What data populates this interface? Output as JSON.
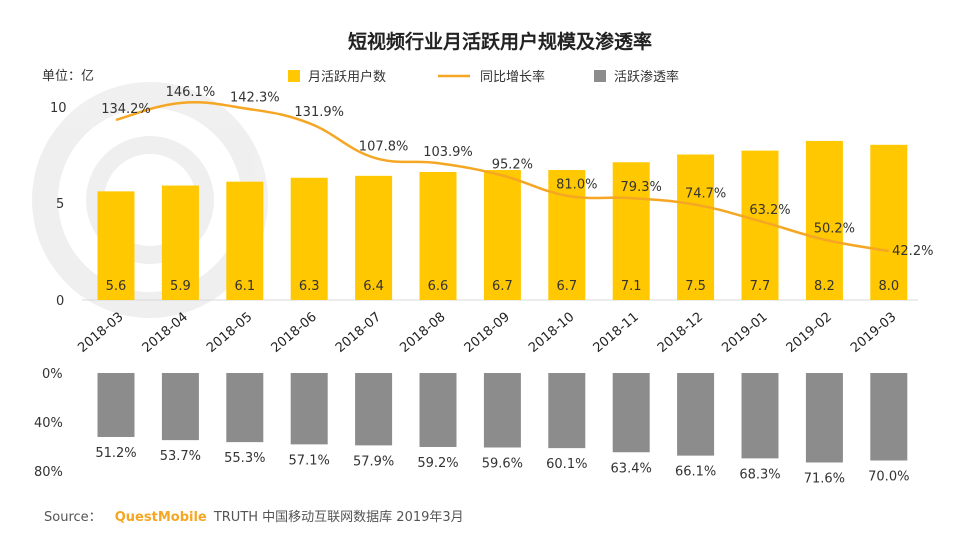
{
  "chart_data": {
    "type": "bar+line",
    "title": "短视频行业月活跃用户规模及渗透率",
    "unit_label": "单位：亿",
    "categories": [
      "2018-03",
      "2018-04",
      "2018-05",
      "2018-06",
      "2018-07",
      "2018-08",
      "2018-09",
      "2018-10",
      "2018-11",
      "2018-12",
      "2019-01",
      "2019-02",
      "2019-03"
    ],
    "series": [
      {
        "name": "月活跃用户数",
        "type": "bar",
        "color": "#FFC800",
        "values": [
          5.6,
          5.9,
          6.1,
          6.3,
          6.4,
          6.6,
          6.7,
          6.7,
          7.1,
          7.5,
          7.7,
          8.2,
          8.0
        ],
        "labels": [
          "5.6",
          "5.9",
          "6.1",
          "6.3",
          "6.4",
          "6.6",
          "6.7",
          "6.7",
          "7.1",
          "7.5",
          "7.7",
          "8.2",
          "8.0"
        ]
      },
      {
        "name": "同比增长率",
        "type": "line",
        "color": "#F5A623",
        "values": [
          134.2,
          146.1,
          142.3,
          131.9,
          107.8,
          103.9,
          95.2,
          81.0,
          79.3,
          74.7,
          63.2,
          50.2,
          42.2
        ],
        "labels": [
          "134.2%",
          "146.1%",
          "142.3%",
          "131.9%",
          "107.8%",
          "103.9%",
          "95.2%",
          "81.0%",
          "79.3%",
          "74.7%",
          "63.2%",
          "50.2%",
          "42.2%"
        ]
      },
      {
        "name": "活跃渗透率",
        "type": "bar",
        "color": "#8C8C8C",
        "values": [
          51.2,
          53.7,
          55.3,
          57.1,
          57.9,
          59.2,
          59.6,
          60.1,
          63.4,
          66.1,
          68.3,
          71.6,
          70.0
        ],
        "labels": [
          "51.2%",
          "53.7%",
          "55.3%",
          "57.1%",
          "57.9%",
          "59.2%",
          "59.6%",
          "60.1%",
          "63.4%",
          "66.1%",
          "68.3%",
          "71.6%",
          "70.0%"
        ]
      }
    ],
    "y_top": {
      "min": 0,
      "max": 10,
      "ticks": [
        "0",
        "5",
        "10"
      ]
    },
    "y_bottom": {
      "min": 0,
      "max": 80,
      "ticks": [
        "0%",
        "40%",
        "80%"
      ],
      "inverted": true
    },
    "legend_position": "top"
  },
  "source": {
    "prefix": "Source：",
    "brand": "QuestMobile",
    "suffix": "TRUTH 中国移动互联网数据库 2019年3月"
  }
}
